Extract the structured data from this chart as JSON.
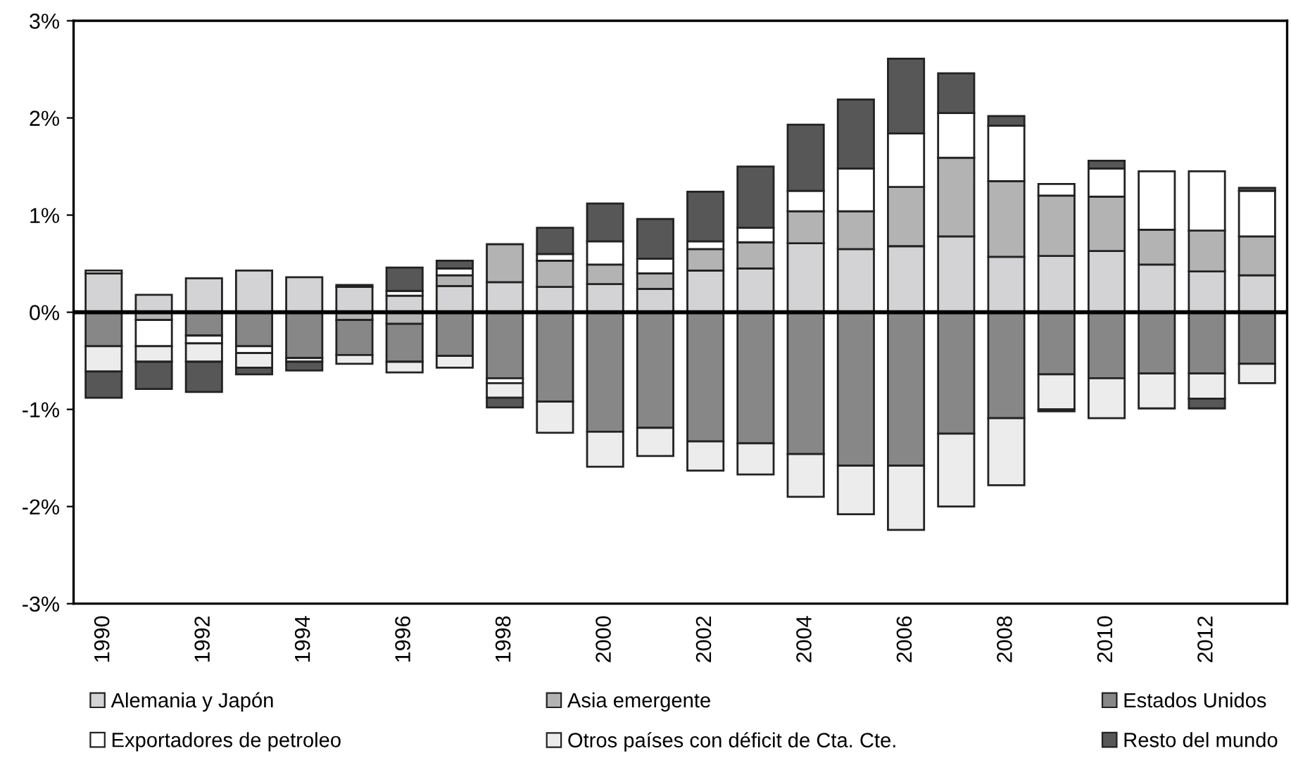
{
  "chart_data": {
    "type": "bar",
    "stacked": true,
    "categories": [
      "1990",
      null,
      "1992",
      null,
      "1994",
      null,
      "1996",
      null,
      "1998",
      null,
      "2000",
      null,
      "2002",
      null,
      "2004",
      null,
      "2006",
      null,
      "2008",
      null,
      "2010",
      null,
      "2012",
      null
    ],
    "series": [
      {
        "name": "Alemania y Japón",
        "color": "#d3d3d5",
        "values": [
          0.4,
          0.18,
          0.35,
          0.43,
          0.36,
          0.26,
          0.17,
          0.27,
          0.31,
          0.26,
          0.29,
          0.24,
          0.43,
          0.45,
          0.71,
          0.65,
          0.68,
          0.78,
          0.57,
          0.58,
          0.63,
          0.49,
          0.42,
          0.38
        ]
      },
      {
        "name": "Asia emergente",
        "color": "#b3b3b3",
        "values": [
          null,
          -0.08,
          null,
          null,
          null,
          -0.08,
          -0.12,
          0.11,
          0.39,
          0.27,
          0.2,
          0.16,
          0.22,
          0.27,
          0.33,
          0.39,
          0.61,
          0.81,
          0.78,
          0.62,
          0.56,
          0.36,
          0.42,
          0.4
        ]
      },
      {
        "name": "Estados Unidos",
        "color": "#878787",
        "values": [
          -0.35,
          null,
          -0.24,
          -0.35,
          -0.47,
          -0.36,
          -0.39,
          -0.45,
          -0.68,
          -0.92,
          -1.23,
          -1.19,
          -1.33,
          -1.35,
          -1.46,
          -1.58,
          -1.58,
          -1.25,
          -1.09,
          -0.64,
          -0.68,
          -0.63,
          -0.63,
          -0.53
        ]
      },
      {
        "name": "Exportadores de petroleo",
        "color": "#ffffff",
        "values": [
          0.03,
          -0.27,
          -0.08,
          -0.07,
          null,
          null,
          0.05,
          0.07,
          -0.05,
          0.07,
          0.24,
          0.15,
          0.08,
          0.15,
          0.21,
          0.44,
          0.55,
          0.46,
          0.57,
          0.12,
          0.29,
          0.6,
          0.61,
          0.47
        ]
      },
      {
        "name": "Otros países con déficit de Cta. Cte.",
        "color": "#ececec",
        "values": [
          -0.26,
          -0.16,
          -0.19,
          -0.15,
          -0.04,
          -0.09,
          -0.11,
          -0.12,
          -0.15,
          -0.32,
          -0.36,
          -0.29,
          -0.3,
          -0.32,
          -0.44,
          -0.5,
          -0.66,
          -0.75,
          -0.69,
          -0.36,
          -0.41,
          -0.36,
          -0.26,
          -0.2
        ]
      },
      {
        "name": "Resto del mundo",
        "color": "#575757",
        "values": [
          -0.27,
          -0.28,
          -0.31,
          -0.07,
          -0.09,
          0.02,
          0.24,
          0.08,
          -0.1,
          0.27,
          0.39,
          0.41,
          0.51,
          0.63,
          0.68,
          0.71,
          0.77,
          0.41,
          0.1,
          -0.02,
          0.08,
          null,
          -0.1,
          0.03
        ]
      }
    ],
    "ylim": [
      -3,
      3
    ],
    "yticks": [
      {
        "value": -3,
        "label": "-3%"
      },
      {
        "value": -2,
        "label": "-2%"
      },
      {
        "value": -1,
        "label": "-1%"
      },
      {
        "value": 0,
        "label": "0%"
      },
      {
        "value": 1,
        "label": "1%"
      },
      {
        "value": 2,
        "label": "2%"
      },
      {
        "value": 3,
        "label": "3%"
      }
    ],
    "ref_lines": [
      {
        "axis": "y",
        "value": 0,
        "color": "#000000"
      }
    ],
    "legend": "bottom",
    "grid": false
  }
}
